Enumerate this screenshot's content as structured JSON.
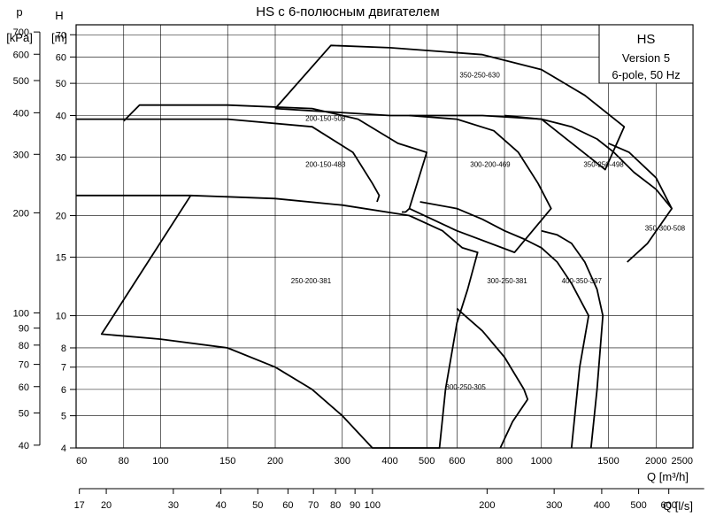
{
  "chart_data": {
    "type": "line",
    "title": "HS с 6-полюсным двигателем",
    "scale": "log-log",
    "info_box": [
      "HS",
      "Version 5",
      "6-pole, 50 Hz"
    ],
    "axes": {
      "x_primary": {
        "label": "Q [m³/h]",
        "range": [
          60,
          2500
        ],
        "ticks": [
          60,
          80,
          100,
          150,
          200,
          300,
          400,
          500,
          600,
          800,
          1000,
          1500,
          2000,
          2500
        ]
      },
      "x_secondary": {
        "label": "Q [l/s]",
        "ticks": [
          17,
          20,
          30,
          40,
          50,
          60,
          70,
          80,
          90,
          100,
          200,
          300,
          400,
          500,
          600
        ]
      },
      "y_head": {
        "label_top": "H",
        "label_unit": "[m]",
        "range": [
          4,
          75
        ],
        "ticks": [
          4,
          5,
          6,
          7,
          8,
          10,
          15,
          20,
          30,
          40,
          50,
          60,
          70
        ]
      },
      "y_pressure": {
        "label_top": "p",
        "label_unit": "[kPa]",
        "ticks": [
          40,
          50,
          60,
          70,
          80,
          90,
          100,
          200,
          300,
          400,
          500,
          600,
          700
        ]
      }
    },
    "series": [
      {
        "name": "350-250-630",
        "label_at": [
          610,
          52
        ],
        "points": [
          [
            200,
            42
          ],
          [
            280,
            65
          ],
          [
            400,
            64
          ],
          [
            700,
            61
          ],
          [
            1000,
            55
          ],
          [
            1300,
            46
          ],
          [
            1650,
            37
          ],
          [
            1470,
            27.5
          ],
          [
            1000,
            39
          ],
          [
            700,
            40
          ],
          [
            400,
            40
          ],
          [
            200,
            42
          ]
        ]
      },
      {
        "name": "200-150-508",
        "label_at": [
          240,
          38.5
        ],
        "points": [
          [
            80,
            38.5
          ],
          [
            88,
            43
          ],
          [
            150,
            43
          ],
          [
            250,
            42
          ],
          [
            330,
            39
          ],
          [
            420,
            33
          ],
          [
            500,
            31
          ],
          [
            450,
            21
          ],
          [
            440,
            20.5
          ],
          [
            430,
            20.5
          ]
        ]
      },
      {
        "name": "200-150-483",
        "label_at": [
          240,
          28
        ],
        "points": [
          [
            60,
            39
          ],
          [
            150,
            39
          ],
          [
            250,
            37
          ],
          [
            320,
            31
          ],
          [
            360,
            25
          ],
          [
            375,
            23
          ],
          [
            370,
            22
          ]
        ]
      },
      {
        "name": "300-200-469",
        "label_at": [
          650,
          28
        ],
        "points": [
          [
            450,
            40
          ],
          [
            600,
            39
          ],
          [
            750,
            36
          ],
          [
            870,
            31
          ],
          [
            980,
            25
          ],
          [
            1060,
            21
          ],
          [
            850,
            15.5
          ],
          [
            600,
            18
          ],
          [
            450,
            21
          ]
        ]
      },
      {
        "name": "350-250-498",
        "label_at": [
          1290,
          28
        ],
        "points": [
          [
            800,
            40
          ],
          [
            1000,
            39
          ],
          [
            1200,
            37
          ],
          [
            1400,
            34
          ],
          [
            1550,
            31
          ],
          [
            1750,
            27
          ],
          [
            2000,
            24
          ],
          [
            2200,
            21
          ],
          [
            1900,
            16.5
          ],
          [
            1680,
            14.5
          ]
        ]
      },
      {
        "name": "350-300-508",
        "label_at": [
          1870,
          18
        ],
        "points": [
          [
            1500,
            33
          ],
          [
            1700,
            31
          ],
          [
            2000,
            26
          ],
          [
            2200,
            21
          ]
        ]
      },
      {
        "name": "250-200-381",
        "label_at": [
          220,
          12.5
        ],
        "points": [
          [
            60,
            23
          ],
          [
            120,
            23
          ],
          [
            200,
            22.5
          ],
          [
            300,
            21.5
          ],
          [
            450,
            20
          ],
          [
            550,
            18
          ],
          [
            620,
            16
          ],
          [
            680,
            15.5
          ],
          [
            640,
            12
          ],
          [
            600,
            9.5
          ],
          [
            560,
            6
          ],
          [
            540,
            4
          ],
          [
            360,
            4
          ],
          [
            300,
            5
          ],
          [
            250,
            6
          ],
          [
            200,
            7
          ],
          [
            150,
            8
          ],
          [
            100,
            8.5
          ],
          [
            70,
            8.8
          ],
          [
            120,
            23
          ]
        ]
      },
      {
        "name": "300-250-381",
        "label_at": [
          720,
          12.5
        ],
        "points": [
          [
            480,
            22
          ],
          [
            600,
            21
          ],
          [
            700,
            19.5
          ],
          [
            800,
            18
          ],
          [
            900,
            17
          ],
          [
            1000,
            16
          ],
          [
            1100,
            14.5
          ],
          [
            1200,
            12.5
          ],
          [
            1330,
            10
          ],
          [
            1260,
            7
          ],
          [
            1200,
            4
          ]
        ]
      },
      {
        "name": "400-350-397",
        "label_at": [
          1130,
          12.5
        ],
        "points": [
          [
            1000,
            18
          ],
          [
            1100,
            17.5
          ],
          [
            1200,
            16.5
          ],
          [
            1300,
            14.5
          ],
          [
            1400,
            12
          ],
          [
            1450,
            10
          ],
          [
            1400,
            6
          ],
          [
            1350,
            4
          ]
        ]
      },
      {
        "name": "300-250-305",
        "label_at": [
          560,
          6
        ],
        "points": [
          [
            600,
            10.5
          ],
          [
            700,
            9
          ],
          [
            800,
            7.5
          ],
          [
            900,
            6
          ],
          [
            920,
            5.6
          ],
          [
            840,
            4.8
          ],
          [
            780,
            4
          ]
        ]
      }
    ]
  }
}
